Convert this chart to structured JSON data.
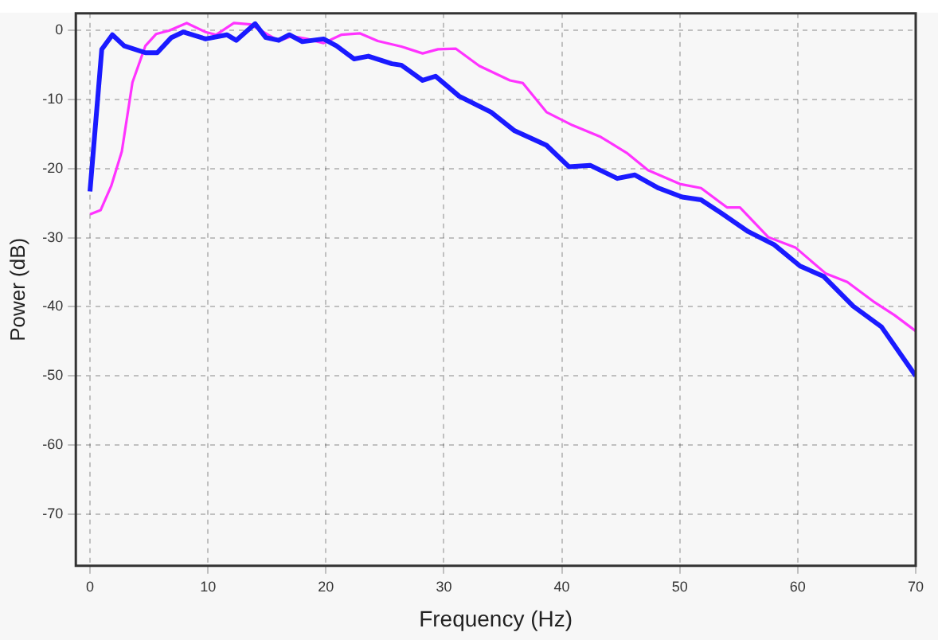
{
  "chart_data": {
    "type": "line",
    "xlabel": "Frequency (Hz)",
    "ylabel": "Power (dB)",
    "xlim": [
      -1.2,
      70
    ],
    "ylim": [
      -77.5,
      2.5
    ],
    "xticks": [
      0,
      10,
      20,
      30,
      40,
      50,
      60,
      70
    ],
    "yticks": [
      -70,
      -60,
      -50,
      -40,
      -30,
      -20,
      -10,
      0
    ],
    "grid": true,
    "line_style": "solid",
    "marker": "none",
    "series": [
      {
        "color": "#1a1aff",
        "x": [
          0,
          1,
          1.9,
          2.9,
          4.7,
          5.7,
          6.9,
          7.9,
          9.8,
          11.6,
          12.4,
          14,
          14.9,
          16,
          16.9,
          18,
          19.8,
          20.9,
          22.4,
          23.6,
          25.6,
          26.4,
          28.2,
          29.3,
          31.3,
          34,
          36,
          38.7,
          40.6,
          42.4,
          44.7,
          46.2,
          48.2,
          50.2,
          51.8,
          53.5,
          55.8,
          58,
          60.2,
          62.2,
          64.7,
          67.1,
          70
        ],
        "values": [
          -23.3,
          -2.7,
          -0.6,
          -2.2,
          -3.2,
          -3.2,
          -1,
          -0.2,
          -1.2,
          -0.6,
          -1.4,
          1,
          -1,
          -1.4,
          -0.6,
          -1.6,
          -1.2,
          -2.2,
          -4.1,
          -3.7,
          -4.8,
          -5,
          -7.2,
          -6.6,
          -9.5,
          -11.8,
          -14.5,
          -16.6,
          -19.7,
          -19.5,
          -21.4,
          -20.9,
          -22.8,
          -24.1,
          -24.5,
          -26.4,
          -29.1,
          -31,
          -34.1,
          -35.6,
          -39.9,
          -42.9,
          -50
        ]
      },
      {
        "color": "#ff33ff",
        "x": [
          0,
          0.9,
          1.8,
          2.7,
          3.6,
          4.7,
          5.6,
          6.7,
          8.2,
          9.8,
          10.7,
          12.2,
          13.6,
          14.9,
          16,
          17.1,
          18.4,
          19.8,
          21.3,
          22.9,
          24.4,
          26.4,
          28.2,
          29.5,
          31,
          33,
          35.6,
          36.7,
          38.7,
          40.9,
          43.3,
          45.5,
          47.3,
          50,
          51.8,
          54,
          55.1,
          57.5,
          59.8,
          62.4,
          64.2,
          66.4,
          68.2,
          70
        ],
        "values": [
          -26.6,
          -26,
          -22.5,
          -17.5,
          -7.5,
          -2.2,
          -0.5,
          0,
          1.1,
          -0.2,
          -0.6,
          1.1,
          0.9,
          null,
          -1.5,
          -0.8,
          -1.2,
          -1.8,
          -0.6,
          -0.4,
          -1.5,
          -2.3,
          -3.3,
          -2.7,
          -2.6,
          -5.1,
          -7.2,
          -7.6,
          -11.8,
          -13.7,
          -15.4,
          -17.7,
          -20.2,
          -22.2,
          -22.8,
          -25.6,
          -25.6,
          -29.9,
          -31.4,
          -35.2,
          -36.4,
          -39.2,
          -41.2,
          -43.5
        ]
      }
    ]
  }
}
